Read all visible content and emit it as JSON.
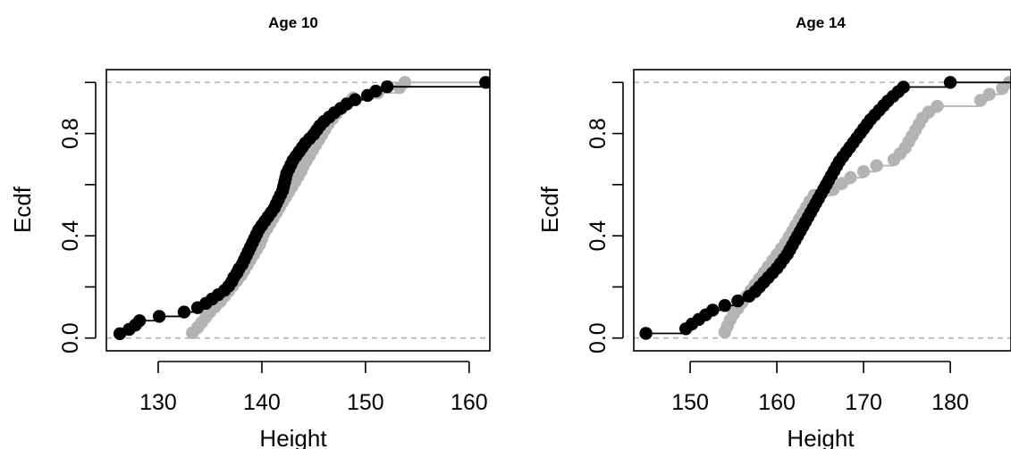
{
  "chart_data": [
    {
      "type": "scatter",
      "subtype": "ecdf-step",
      "title": "Age 10",
      "xlabel": "Height",
      "ylabel": "Ecdf",
      "xlim": [
        125,
        162
      ],
      "ylim": [
        -0.05,
        1.05
      ],
      "xticks": [
        130,
        140,
        150,
        160
      ],
      "yticks": [
        0.0,
        0.4,
        0.8
      ],
      "ytick_labels": [
        "0.0",
        "0.4",
        "0.8"
      ],
      "reference_lines": [
        0,
        1
      ],
      "grid": false,
      "colors": {
        "series1": "#000000",
        "series2": "#b3b3b3",
        "reference": "#b3b3b3"
      },
      "series": [
        {
          "color": "#000000",
          "values": [
            126.3,
            127.2,
            127.8,
            128.2,
            130.1,
            132.5,
            133.8,
            134.6,
            135.2,
            135.8,
            136.4,
            136.8,
            137.1,
            137.3,
            137.6,
            137.8,
            138.1,
            138.3,
            138.5,
            138.7,
            138.9,
            139.1,
            139.3,
            139.5,
            139.7,
            140.0,
            140.3,
            140.6,
            140.9,
            141.2,
            141.4,
            141.6,
            141.8,
            142.0,
            142.1,
            142.2,
            142.3,
            142.4,
            142.6,
            142.8,
            143.0,
            143.3,
            143.6,
            143.9,
            144.2,
            144.6,
            145.0,
            145.3,
            145.6,
            146.0,
            146.5,
            147.0,
            147.6,
            148.2,
            149.0,
            150.2,
            151.0,
            152.1,
            161.6
          ]
        },
        {
          "color": "#b3b3b3",
          "values": [
            133.3,
            133.8,
            134.2,
            134.6,
            135.0,
            135.5,
            136.0,
            136.4,
            136.8,
            137.2,
            137.6,
            138.0,
            138.3,
            138.6,
            138.9,
            139.2,
            139.5,
            139.8,
            140.0,
            140.2,
            140.5,
            140.8,
            141.1,
            141.4,
            141.7,
            142.0,
            142.3,
            142.6,
            142.9,
            143.2,
            143.5,
            143.8,
            144.0,
            144.3,
            144.6,
            144.9,
            145.2,
            145.5,
            145.8,
            146.1,
            146.4,
            146.8,
            147.2,
            147.7,
            148.2,
            148.8,
            151.2,
            153.3,
            153.8
          ]
        }
      ]
    },
    {
      "type": "scatter",
      "subtype": "ecdf-step",
      "title": "Age 14",
      "xlabel": "Height",
      "ylabel": "Ecdf",
      "xlim": [
        143.5,
        187
      ],
      "ylim": [
        -0.05,
        1.05
      ],
      "xticks": [
        150,
        160,
        170,
        180
      ],
      "yticks": [
        0.0,
        0.4,
        0.8
      ],
      "ytick_labels": [
        "0.0",
        "0.4",
        "0.8"
      ],
      "reference_lines": [
        0,
        1
      ],
      "grid": false,
      "colors": {
        "series1": "#000000",
        "series2": "#b3b3b3",
        "reference": "#b3b3b3"
      },
      "series": [
        {
          "color": "#000000",
          "values": [
            144.9,
            149.5,
            150.2,
            151.0,
            151.8,
            152.6,
            154.0,
            155.5,
            156.8,
            157.5,
            158.0,
            158.5,
            159.0,
            159.5,
            160.0,
            160.4,
            160.8,
            161.2,
            161.5,
            161.8,
            162.1,
            162.4,
            162.7,
            163.0,
            163.3,
            163.6,
            163.9,
            164.2,
            164.5,
            164.8,
            165.1,
            165.4,
            165.7,
            166.0,
            166.3,
            166.6,
            166.9,
            167.2,
            167.6,
            168.0,
            168.4,
            168.8,
            169.2,
            169.6,
            170.0,
            170.4,
            170.8,
            171.3,
            171.8,
            172.3,
            172.8,
            173.4,
            174.0,
            174.6,
            180.0
          ]
        },
        {
          "color": "#b3b3b3",
          "values": [
            154.0,
            154.3,
            154.6,
            155.0,
            155.5,
            156.0,
            156.5,
            157.0,
            157.5,
            158.0,
            158.5,
            159.0,
            159.5,
            160.0,
            160.5,
            161.0,
            161.4,
            161.8,
            162.2,
            162.6,
            163.0,
            163.4,
            163.8,
            164.3,
            166.5,
            167.5,
            168.5,
            170.0,
            171.5,
            173.5,
            174.2,
            174.8,
            175.2,
            175.6,
            176.0,
            176.4,
            176.8,
            177.5,
            178.5,
            183.5,
            184.5,
            186.0,
            186.8
          ]
        }
      ]
    }
  ]
}
